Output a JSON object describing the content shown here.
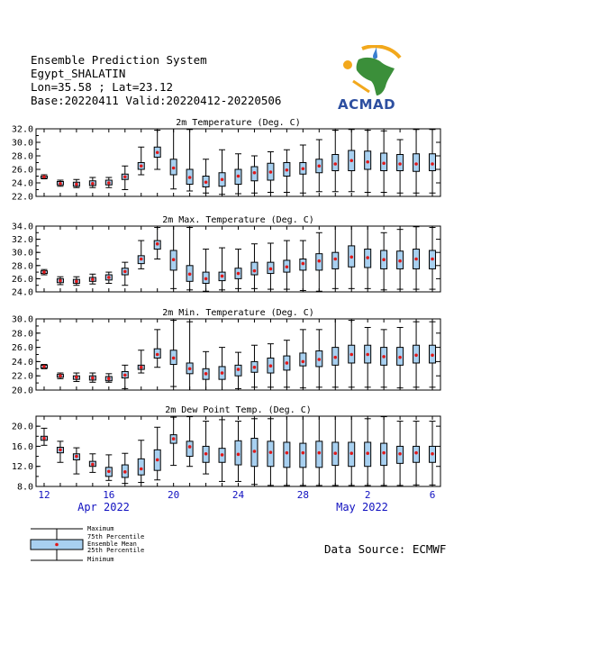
{
  "header": {
    "line1": "Ensemble Prediction System",
    "line2": "Egypt_SHALATIN",
    "line3": "Lon=35.58 ; Lat=23.12",
    "line4": "Base:20220411 Valid:20220412-20220506"
  },
  "logo": {
    "text": "ACMAD"
  },
  "source": "Data Source: ECMWF",
  "colors": {
    "box": "#a8d0f0",
    "mean": "#e01818",
    "axis_label": "#1010c0",
    "whisker": "#000000"
  },
  "x_axis": {
    "days": [
      "12",
      "16",
      "20",
      "24",
      "28",
      "2",
      "6"
    ],
    "months": [
      "Apr 2022",
      "May 2022"
    ]
  },
  "legend": {
    "max": "Maximum",
    "p75": "75th Percentile",
    "mean": "Ensemble Mean",
    "p25": "25th Percentile",
    "min": "Minimum"
  },
  "chart_data": [
    {
      "type": "box",
      "title": "2m Temperature (Deg. C)",
      "ylim": [
        22,
        32
      ],
      "yticks": [
        "22.0",
        "24.0",
        "26.0",
        "28.0",
        "30.0",
        "32.0"
      ],
      "x": [
        "2022-04-12",
        "2022-04-13",
        "2022-04-14",
        "2022-04-15",
        "2022-04-16",
        "2022-04-17",
        "2022-04-18",
        "2022-04-19",
        "2022-04-20",
        "2022-04-21",
        "2022-04-22",
        "2022-04-23",
        "2022-04-24",
        "2022-04-25",
        "2022-04-26",
        "2022-04-27",
        "2022-04-28",
        "2022-04-29",
        "2022-04-30",
        "2022-05-01",
        "2022-05-02",
        "2022-05-03",
        "2022-05-04",
        "2022-05-05",
        "2022-05-06"
      ],
      "min": [
        24.6,
        23.5,
        23.3,
        23.3,
        23.3,
        23.0,
        25.2,
        26.0,
        23.1,
        22.8,
        22.5,
        22.3,
        22.4,
        22.5,
        22.6,
        22.6,
        22.5,
        22.7,
        22.7,
        22.7,
        22.6,
        22.6,
        22.5,
        22.5,
        22.5
      ],
      "p25": [
        24.7,
        23.7,
        23.5,
        23.6,
        23.7,
        24.5,
        26.0,
        27.8,
        25.2,
        23.8,
        23.4,
        23.5,
        23.8,
        24.3,
        24.4,
        25.0,
        25.3,
        25.5,
        25.8,
        25.8,
        26.0,
        25.8,
        25.8,
        25.7,
        25.8
      ],
      "mean": [
        24.9,
        23.9,
        23.8,
        23.9,
        24.0,
        24.9,
        26.5,
        28.5,
        26.2,
        24.8,
        24.1,
        24.5,
        25.0,
        25.5,
        25.6,
        25.9,
        26.1,
        26.5,
        26.8,
        27.3,
        27.1,
        26.9,
        26.8,
        26.8,
        26.8
      ],
      "p75": [
        25.0,
        24.2,
        24.1,
        24.3,
        24.4,
        25.3,
        27.0,
        29.3,
        27.5,
        26.0,
        25.0,
        25.5,
        26.0,
        26.4,
        26.9,
        27.0,
        27.0,
        27.5,
        28.2,
        28.8,
        28.7,
        28.4,
        28.2,
        28.3,
        28.3
      ],
      "max": [
        25.2,
        24.4,
        24.5,
        24.8,
        24.8,
        26.5,
        29.3,
        31.8,
        32.0,
        31.9,
        27.5,
        28.9,
        28.3,
        28.0,
        28.6,
        28.9,
        29.6,
        30.4,
        31.8,
        31.9,
        31.8,
        31.7,
        30.4,
        31.9,
        31.9
      ]
    },
    {
      "type": "box",
      "title": "2m Max. Temperature (Deg. C)",
      "ylim": [
        24,
        34
      ],
      "yticks": [
        "24.0",
        "26.0",
        "28.0",
        "30.0",
        "32.0",
        "34.0"
      ],
      "x": [
        "2022-04-12",
        "2022-04-13",
        "2022-04-14",
        "2022-04-15",
        "2022-04-16",
        "2022-04-17",
        "2022-04-18",
        "2022-04-19",
        "2022-04-20",
        "2022-04-21",
        "2022-04-22",
        "2022-04-23",
        "2022-04-24",
        "2022-04-25",
        "2022-04-26",
        "2022-04-27",
        "2022-04-28",
        "2022-04-29",
        "2022-04-30",
        "2022-05-01",
        "2022-05-02",
        "2022-05-03",
        "2022-05-04",
        "2022-05-05",
        "2022-05-06"
      ],
      "min": [
        26.6,
        25.1,
        25.0,
        25.2,
        25.3,
        25.0,
        27.5,
        29.0,
        24.5,
        24.3,
        24.1,
        24.3,
        24.5,
        24.5,
        24.4,
        24.4,
        24.2,
        24.1,
        24.5,
        24.5,
        24.5,
        24.3,
        24.4,
        24.4,
        24.4
      ],
      "p25": [
        26.8,
        25.4,
        25.3,
        25.6,
        25.8,
        26.6,
        28.3,
        30.5,
        27.3,
        25.6,
        25.3,
        25.7,
        26.0,
        26.6,
        26.8,
        27.0,
        27.3,
        27.3,
        27.5,
        27.8,
        27.7,
        27.5,
        27.5,
        27.5,
        27.5
      ],
      "mean": [
        27.0,
        25.7,
        25.6,
        25.9,
        26.2,
        27.1,
        29.0,
        31.3,
        28.9,
        26.7,
        26.0,
        26.4,
        26.8,
        27.2,
        27.5,
        27.8,
        28.3,
        28.7,
        29.0,
        29.3,
        29.2,
        28.9,
        28.7,
        29.0,
        29.0
      ],
      "p75": [
        27.2,
        26.0,
        25.9,
        26.2,
        26.6,
        27.6,
        29.5,
        31.8,
        30.3,
        28.0,
        27.0,
        27.0,
        27.6,
        28.5,
        28.5,
        28.8,
        29.0,
        29.8,
        30.0,
        31.0,
        30.5,
        30.3,
        30.2,
        30.5,
        30.3
      ],
      "max": [
        27.4,
        26.3,
        26.3,
        26.7,
        27.0,
        28.5,
        31.8,
        33.8,
        34.0,
        33.8,
        30.5,
        30.7,
        30.5,
        31.3,
        31.4,
        31.8,
        31.8,
        33.0,
        34.0,
        34.0,
        34.0,
        33.0,
        33.5,
        33.9,
        33.8
      ]
    },
    {
      "type": "box",
      "title": "2m Min. Temperature (Deg. C)",
      "ylim": [
        20,
        30
      ],
      "yticks": [
        "20.0",
        "22.0",
        "24.0",
        "26.0",
        "28.0",
        "30.0"
      ],
      "x": [
        "2022-04-12",
        "2022-04-13",
        "2022-04-14",
        "2022-04-15",
        "2022-04-16",
        "2022-04-17",
        "2022-04-18",
        "2022-04-19",
        "2022-04-20",
        "2022-04-21",
        "2022-04-22",
        "2022-04-23",
        "2022-04-24",
        "2022-04-25",
        "2022-04-26",
        "2022-04-27",
        "2022-04-28",
        "2022-04-29",
        "2022-04-30",
        "2022-05-01",
        "2022-05-02",
        "2022-05-03",
        "2022-05-04",
        "2022-05-05",
        "2022-05-06"
      ],
      "min": [
        23.0,
        21.6,
        21.2,
        21.1,
        21.1,
        20.2,
        22.4,
        23.2,
        20.5,
        20.0,
        20.0,
        20.0,
        20.2,
        20.4,
        20.4,
        20.4,
        20.3,
        20.4,
        20.4,
        20.4,
        20.4,
        20.4,
        20.3,
        20.4,
        20.4
      ],
      "p25": [
        23.1,
        21.8,
        21.5,
        21.4,
        21.3,
        21.7,
        22.9,
        24.5,
        23.6,
        22.3,
        21.5,
        21.5,
        22.0,
        22.5,
        22.4,
        22.8,
        23.4,
        23.3,
        23.5,
        23.8,
        23.8,
        23.5,
        23.5,
        23.8,
        23.8
      ],
      "mean": [
        23.3,
        22.0,
        21.8,
        21.7,
        21.6,
        22.1,
        23.2,
        25.0,
        24.5,
        23.0,
        22.3,
        22.4,
        22.9,
        23.2,
        23.4,
        23.8,
        24.0,
        24.3,
        24.6,
        25.0,
        25.0,
        24.7,
        24.6,
        24.9,
        24.9
      ],
      "p75": [
        23.5,
        22.2,
        22.0,
        22.0,
        21.9,
        22.6,
        23.5,
        25.8,
        25.6,
        23.8,
        23.0,
        23.3,
        23.5,
        24.0,
        24.5,
        24.8,
        25.2,
        25.5,
        26.0,
        26.3,
        26.3,
        26.0,
        26.0,
        26.3,
        26.3
      ],
      "max": [
        23.6,
        22.4,
        22.4,
        22.4,
        22.3,
        23.5,
        25.6,
        28.5,
        29.8,
        29.6,
        25.4,
        26.0,
        25.3,
        26.3,
        26.5,
        27.0,
        28.5,
        28.5,
        30.0,
        29.8,
        28.8,
        28.5,
        28.8,
        29.6,
        29.6
      ]
    },
    {
      "type": "box",
      "title": "2m Dew Point Temp. (Deg. C)",
      "ylim": [
        8,
        22
      ],
      "yticks": [
        "8.0",
        "12.0",
        "16.0",
        "20.0"
      ],
      "x": [
        "2022-04-12",
        "2022-04-13",
        "2022-04-14",
        "2022-04-15",
        "2022-04-16",
        "2022-04-17",
        "2022-04-18",
        "2022-04-19",
        "2022-04-20",
        "2022-04-21",
        "2022-04-22",
        "2022-04-23",
        "2022-04-24",
        "2022-04-25",
        "2022-04-26",
        "2022-04-27",
        "2022-04-28",
        "2022-04-29",
        "2022-04-30",
        "2022-05-01",
        "2022-05-02",
        "2022-05-03",
        "2022-05-04",
        "2022-05-05",
        "2022-05-06"
      ],
      "min": [
        16.2,
        12.8,
        10.5,
        10.8,
        9.2,
        8.6,
        8.8,
        9.3,
        12.2,
        12.0,
        10.5,
        9.0,
        9.0,
        8.4,
        8.2,
        8.2,
        8.2,
        8.2,
        8.2,
        8.2,
        8.2,
        8.2,
        8.2,
        8.3,
        8.3
      ],
      "p25": [
        17.2,
        14.7,
        13.3,
        12.0,
        10.0,
        9.8,
        10.3,
        11.2,
        16.6,
        14.0,
        12.8,
        12.8,
        12.3,
        12.0,
        12.0,
        11.8,
        11.8,
        11.8,
        12.2,
        12.0,
        12.0,
        12.2,
        12.6,
        12.8,
        12.8
      ],
      "mean": [
        17.6,
        15.3,
        14.0,
        12.4,
        11.0,
        10.9,
        11.5,
        13.3,
        17.5,
        15.9,
        14.5,
        14.3,
        14.4,
        15.0,
        14.8,
        14.7,
        14.7,
        14.7,
        14.6,
        14.6,
        14.6,
        14.7,
        14.5,
        14.7,
        14.5
      ],
      "p75": [
        18.0,
        15.8,
        14.5,
        13.0,
        11.8,
        12.3,
        13.5,
        15.3,
        18.3,
        17.0,
        16.0,
        15.6,
        17.1,
        17.6,
        17.0,
        16.8,
        16.6,
        17.0,
        16.8,
        16.8,
        16.8,
        16.6,
        16.0,
        16.0,
        16.0
      ],
      "max": [
        19.6,
        17.0,
        15.7,
        14.5,
        14.3,
        14.6,
        17.2,
        19.8,
        21.8,
        21.9,
        21.0,
        21.3,
        21.0,
        21.5,
        21.5,
        22.0,
        22.0,
        22.0,
        22.0,
        22.0,
        21.5,
        21.9,
        21.0,
        21.0,
        21.0
      ]
    }
  ]
}
